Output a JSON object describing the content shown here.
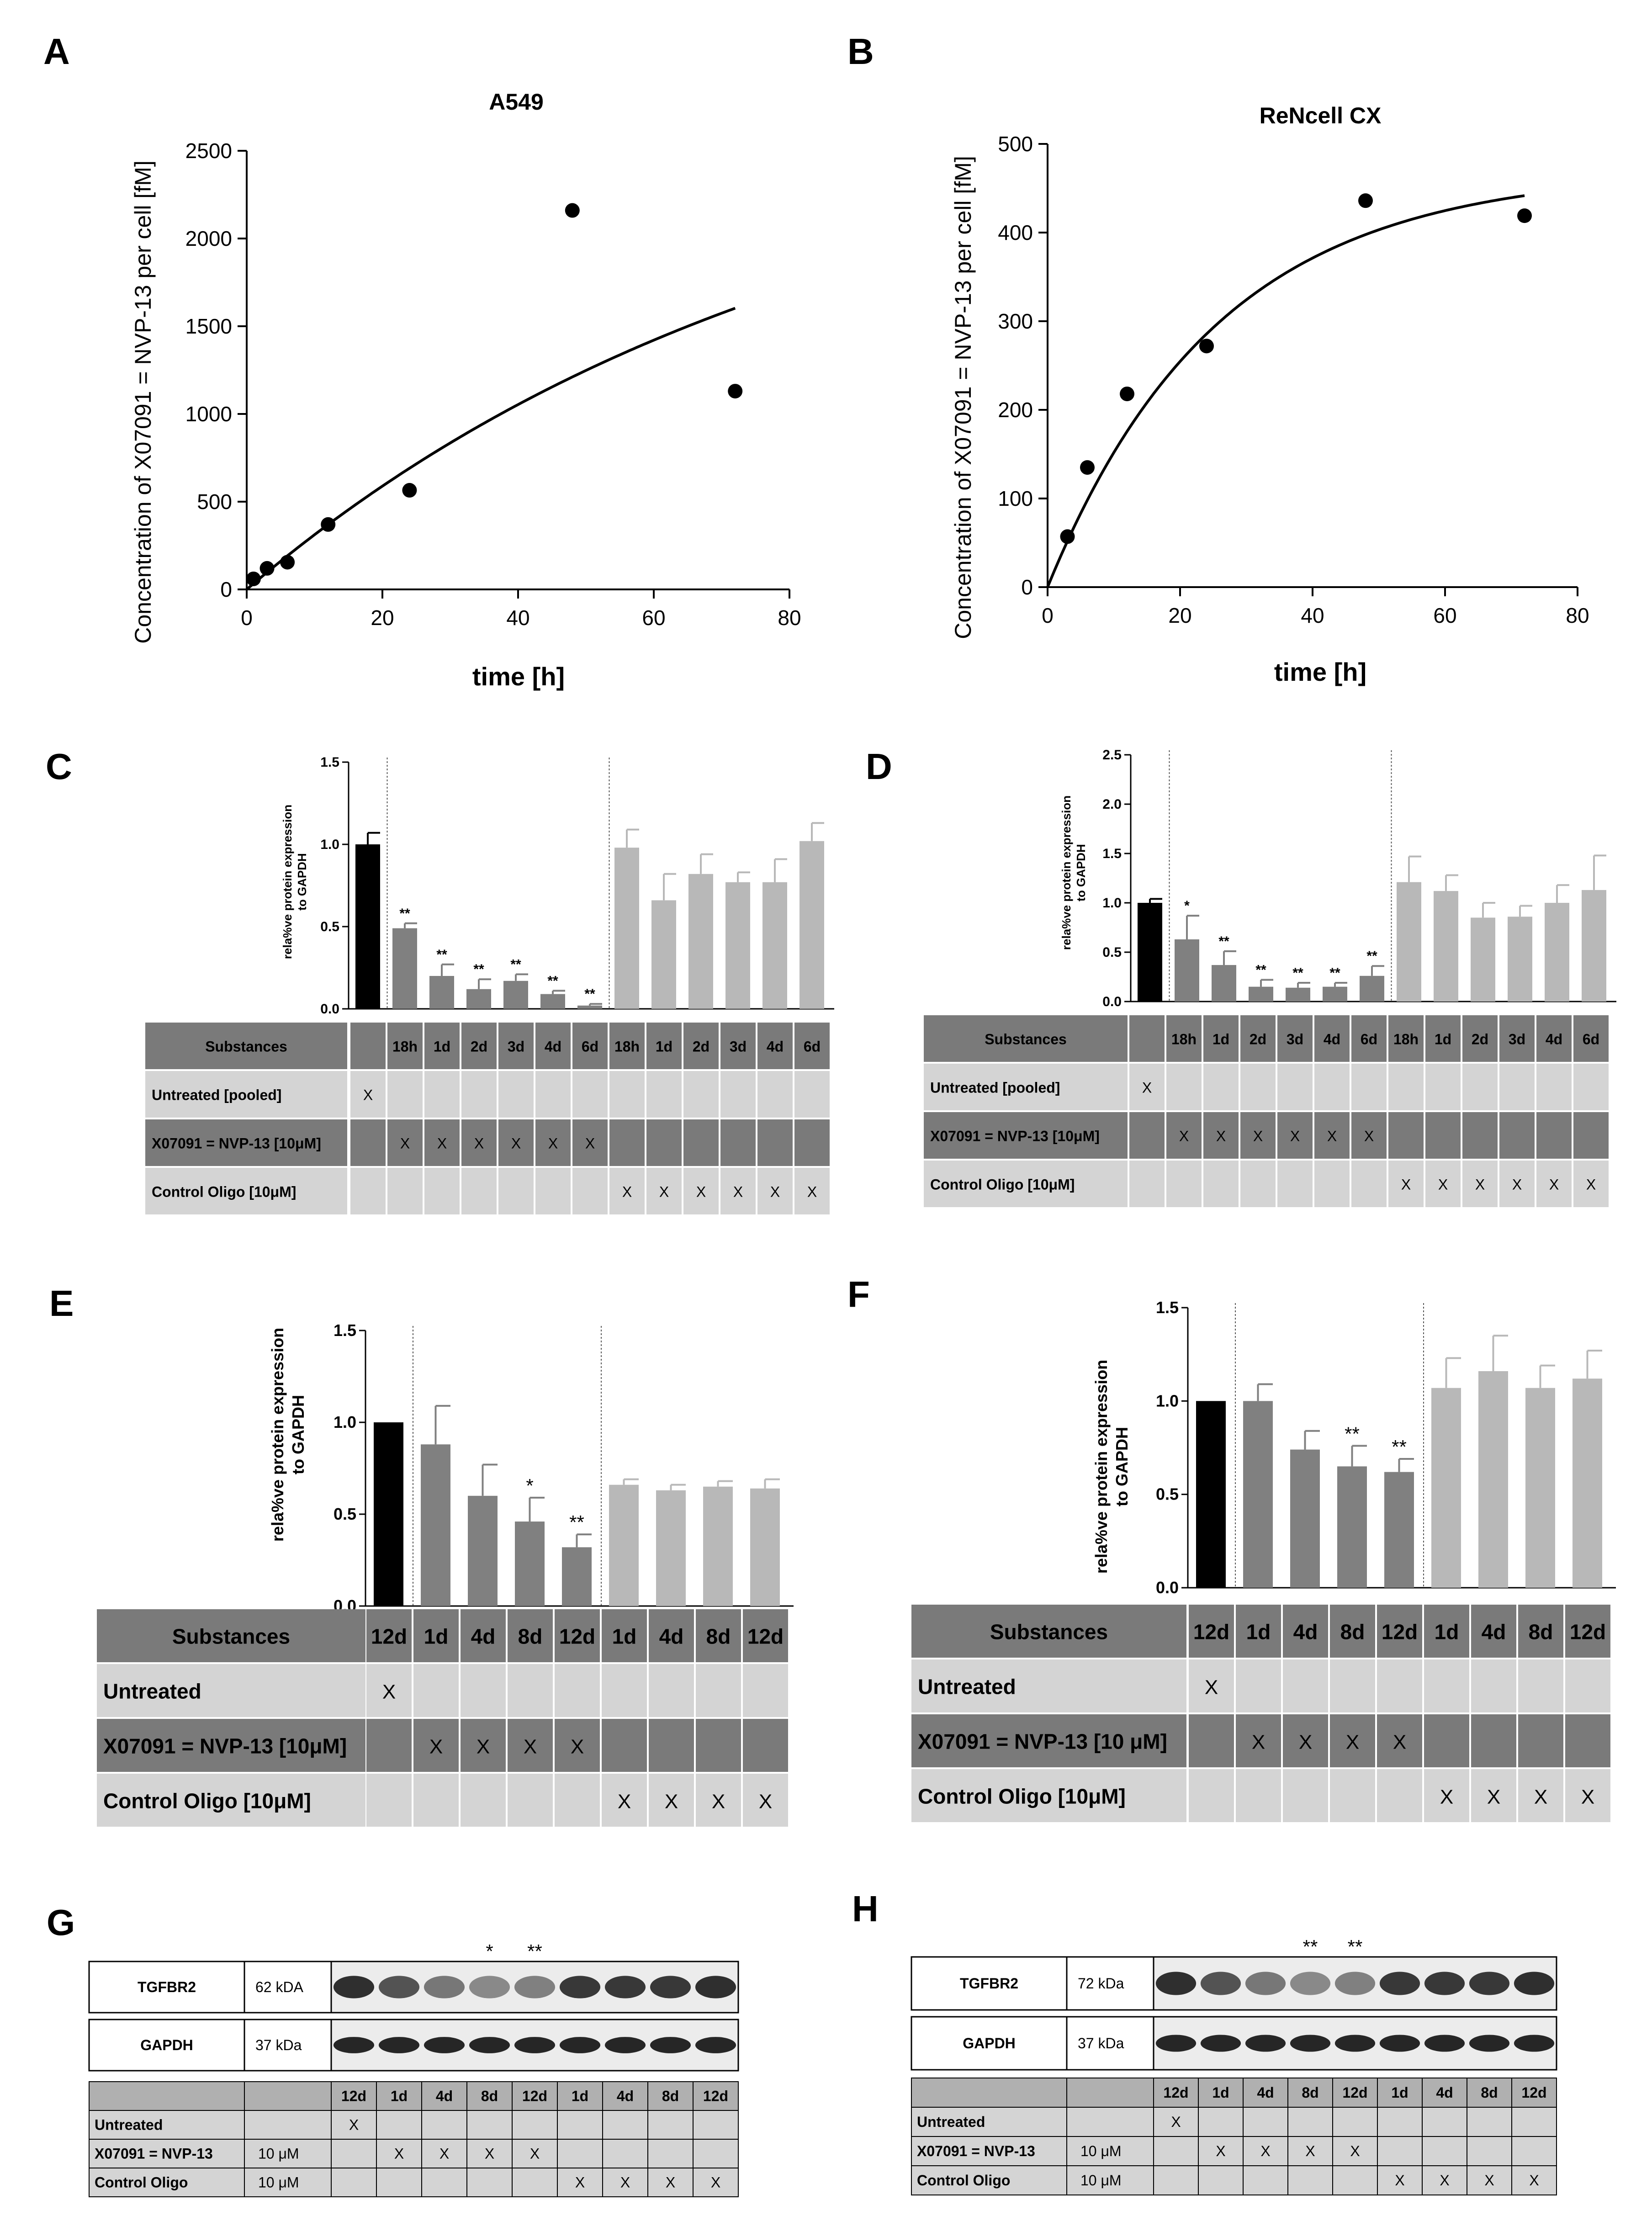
{
  "panels": {
    "A": "A",
    "B": "B",
    "C": "C",
    "D": "D",
    "E": "E",
    "F": "F",
    "G": "G",
    "H": "H"
  },
  "colors": {
    "untreated": "#000000",
    "nvp": "#808080",
    "control": "#b8b8b8",
    "table_dark": "#7a7a7a",
    "table_light": "#d4d4d4"
  },
  "chart_data": [
    {
      "id": "A",
      "type": "scatter",
      "title": "A549",
      "xlabel": "time [h]",
      "ylabel": "Concentration of X07091 = NVP-13  per cell [fM]",
      "xlim": [
        0,
        80
      ],
      "ylim": [
        0,
        2500
      ],
      "xticks": [
        "0",
        "20",
        "40",
        "60",
        "80"
      ],
      "yticks": [
        "0",
        "500",
        "1000",
        "1500",
        "2000",
        "2500"
      ],
      "x": [
        1,
        3,
        6,
        12,
        24,
        48,
        72
      ],
      "y": [
        60,
        120,
        155,
        370,
        565,
        2160,
        1130
      ],
      "fit": {
        "model": "one-phase association",
        "plateau": 2800,
        "k": 0.0118
      }
    },
    {
      "id": "B",
      "type": "scatter",
      "title": "ReNcell CX",
      "xlabel": "time [h]",
      "ylabel": "Concentration of X07091 = NVP-13  per cell [fM]",
      "xlim": [
        0,
        80
      ],
      "ylim": [
        0,
        500
      ],
      "xticks": [
        "0",
        "20",
        "40",
        "60",
        "80"
      ],
      "yticks": [
        "0",
        "100",
        "200",
        "300",
        "400",
        "500"
      ],
      "x": [
        3,
        6,
        12,
        24,
        48,
        72
      ],
      "y": [
        57,
        135,
        218,
        272,
        436,
        419
      ],
      "fit": {
        "model": "one-phase association",
        "plateau": 470,
        "k": 0.039
      }
    },
    {
      "id": "C",
      "type": "bar",
      "ylabel": [
        "rela%ve protein expression",
        "to GAPDH"
      ],
      "ylim": [
        0,
        1.5
      ],
      "yticks": [
        "0.0",
        "0.5",
        "1.0",
        "1.5"
      ],
      "values": [
        1.0,
        0.49,
        0.2,
        0.12,
        0.17,
        0.09,
        0.02,
        0.98,
        0.66,
        0.82,
        0.77,
        0.77,
        1.02
      ],
      "errors": [
        0.07,
        0.03,
        0.07,
        0.06,
        0.04,
        0.02,
        0.01,
        0.11,
        0.16,
        0.12,
        0.06,
        0.14,
        0.11
      ],
      "groups": [
        "untreated",
        "nvp",
        "nvp",
        "nvp",
        "nvp",
        "nvp",
        "nvp",
        "control",
        "control",
        "control",
        "control",
        "control",
        "control"
      ],
      "significance": [
        "",
        "**",
        "**",
        "**",
        "**",
        "**",
        "**",
        "",
        "",
        "",
        "",
        "",
        ""
      ]
    },
    {
      "id": "D",
      "type": "bar",
      "ylabel": [
        "rela%ve protein expression",
        "to GAPDH"
      ],
      "ylim": [
        0,
        2.5
      ],
      "yticks": [
        "0.0",
        "0.5",
        "1.0",
        "1.5",
        "2.0",
        "2.5"
      ],
      "values": [
        1.0,
        0.63,
        0.37,
        0.15,
        0.14,
        0.15,
        0.26,
        1.21,
        1.12,
        0.85,
        0.86,
        1.0,
        1.13
      ],
      "errors": [
        0.04,
        0.24,
        0.14,
        0.07,
        0.05,
        0.04,
        0.1,
        0.26,
        0.16,
        0.15,
        0.11,
        0.18,
        0.35
      ],
      "groups": [
        "untreated",
        "nvp",
        "nvp",
        "nvp",
        "nvp",
        "nvp",
        "nvp",
        "control",
        "control",
        "control",
        "control",
        "control",
        "control"
      ],
      "significance": [
        "",
        "*",
        "**",
        "**",
        "**",
        "**",
        "**",
        "",
        "",
        "",
        "",
        "",
        ""
      ]
    },
    {
      "id": "E",
      "type": "bar",
      "ylabel": [
        "rela%ve protein expression",
        "to GAPDH"
      ],
      "ylim": [
        0,
        1.5
      ],
      "yticks": [
        "0.0",
        "0.5",
        "1.0",
        "1.5"
      ],
      "values": [
        1.0,
        0.88,
        0.6,
        0.46,
        0.32,
        0.66,
        0.63,
        0.65,
        0.64
      ],
      "errors": [
        0.0,
        0.21,
        0.17,
        0.13,
        0.07,
        0.03,
        0.03,
        0.03,
        0.05
      ],
      "groups": [
        "untreated",
        "nvp",
        "nvp",
        "nvp",
        "nvp",
        "control",
        "control",
        "control",
        "control"
      ],
      "significance": [
        "",
        "",
        "",
        "*",
        "**",
        "",
        "",
        "",
        ""
      ]
    },
    {
      "id": "F",
      "type": "bar",
      "ylabel": [
        "rela%ve protein expression",
        "to GAPDH"
      ],
      "ylim": [
        0,
        1.5
      ],
      "yticks": [
        "0.0",
        "0.5",
        "1.0",
        "1.5"
      ],
      "values": [
        1.0,
        1.0,
        0.74,
        0.65,
        0.62,
        1.07,
        1.16,
        1.07,
        1.12
      ],
      "errors": [
        0.0,
        0.09,
        0.1,
        0.11,
        0.07,
        0.16,
        0.19,
        0.12,
        0.15
      ],
      "groups": [
        "untreated",
        "nvp",
        "nvp",
        "nvp",
        "nvp",
        "control",
        "control",
        "control",
        "control"
      ],
      "significance": [
        "",
        "",
        "",
        "**",
        "**",
        "",
        "",
        "",
        ""
      ]
    }
  ],
  "tables": {
    "CD": {
      "header_label": "Substances",
      "columns": [
        "",
        "18h",
        "1d",
        "2d",
        "3d",
        "4d",
        "6d",
        "18h",
        "1d",
        "2d",
        "3d",
        "4d",
        "6d"
      ],
      "rows": [
        {
          "label": "Untreated [pooled]",
          "marks": [
            "X",
            "",
            "",
            "",
            "",
            "",
            "",
            "",
            "",
            "",
            "",
            "",
            ""
          ]
        },
        {
          "label": "X07091 = NVP-13 [10μM]",
          "marks": [
            "",
            "X",
            "X",
            "X",
            "X",
            "X",
            "X",
            "",
            "",
            "",
            "",
            "",
            ""
          ]
        },
        {
          "label": "Control Oligo [10μM]",
          "marks": [
            "",
            "",
            "",
            "",
            "",
            "",
            "",
            "X",
            "X",
            "X",
            "X",
            "X",
            "X"
          ]
        }
      ]
    },
    "E": {
      "header_label": "Substances",
      "columns": [
        "12d",
        "1d",
        "4d",
        "8d",
        "12d",
        "1d",
        "4d",
        "8d",
        "12d"
      ],
      "rows": [
        {
          "label": "Untreated",
          "marks": [
            "X",
            "",
            "",
            "",
            "",
            "",
            "",
            "",
            ""
          ]
        },
        {
          "label": "X07091 = NVP-13 [10μM]",
          "marks": [
            "",
            "X",
            "X",
            "X",
            "X",
            "",
            "",
            "",
            ""
          ]
        },
        {
          "label": "Control Oligo [10μM]",
          "marks": [
            "",
            "",
            "",
            "",
            "",
            "X",
            "X",
            "X",
            "X"
          ]
        }
      ]
    },
    "F": {
      "header_label": "Substances",
      "columns": [
        "12d",
        "1d",
        "4d",
        "8d",
        "12d",
        "1d",
        "4d",
        "8d",
        "12d"
      ],
      "rows": [
        {
          "label": "Untreated",
          "marks": [
            "X",
            "",
            "",
            "",
            "",
            "",
            "",
            "",
            ""
          ]
        },
        {
          "label": "X07091 = NVP-13 [10 μM]",
          "marks": [
            "",
            "X",
            "X",
            "X",
            "X",
            "",
            "",
            "",
            ""
          ]
        },
        {
          "label": "Control Oligo [10μM]",
          "marks": [
            "",
            "",
            "",
            "",
            "",
            "X",
            "X",
            "X",
            "X"
          ]
        }
      ]
    },
    "G": {
      "tgf_label": "TGFBR2",
      "tgf_kda": "62 kDA",
      "gapdh_label": "GAPDH",
      "gapdh_kda": "37 kDa",
      "significance": [
        "",
        "",
        "",
        "*",
        "**",
        "",
        "",
        "",
        ""
      ],
      "columns": [
        "12d",
        "1d",
        "4d",
        "8d",
        "12d",
        "1d",
        "4d",
        "8d",
        "12d"
      ],
      "rows": [
        {
          "label": "Untreated",
          "dose": "",
          "marks": [
            "X",
            "",
            "",
            "",
            "",
            "",
            "",
            "",
            ""
          ]
        },
        {
          "label": "X07091 = NVP-13",
          "dose": "10 μM",
          "marks": [
            "",
            "X",
            "X",
            "X",
            "X",
            "",
            "",
            "",
            ""
          ]
        },
        {
          "label": "Control Oligo",
          "dose": "10 μM",
          "marks": [
            "",
            "",
            "",
            "",
            "",
            "X",
            "X",
            "X",
            "X"
          ]
        }
      ]
    },
    "H": {
      "tgf_label": "TGFBR2",
      "tgf_kda": "72 kDa",
      "gapdh_label": "GAPDH",
      "gapdh_kda": "37 kDa",
      "significance": [
        "",
        "",
        "",
        "**",
        "**",
        "",
        "",
        "",
        ""
      ],
      "columns": [
        "12d",
        "1d",
        "4d",
        "8d",
        "12d",
        "1d",
        "4d",
        "8d",
        "12d"
      ],
      "rows": [
        {
          "label": "Untreated",
          "dose": "",
          "marks": [
            "X",
            "",
            "",
            "",
            "",
            "",
            "",
            "",
            ""
          ]
        },
        {
          "label": "X07091 = NVP-13",
          "dose": "10 μM",
          "marks": [
            "",
            "X",
            "X",
            "X",
            "X",
            "",
            "",
            "",
            ""
          ]
        },
        {
          "label": "Control Oligo",
          "dose": "10 μM",
          "marks": [
            "",
            "",
            "",
            "",
            "",
            "X",
            "X",
            "X",
            "X"
          ]
        }
      ]
    }
  }
}
